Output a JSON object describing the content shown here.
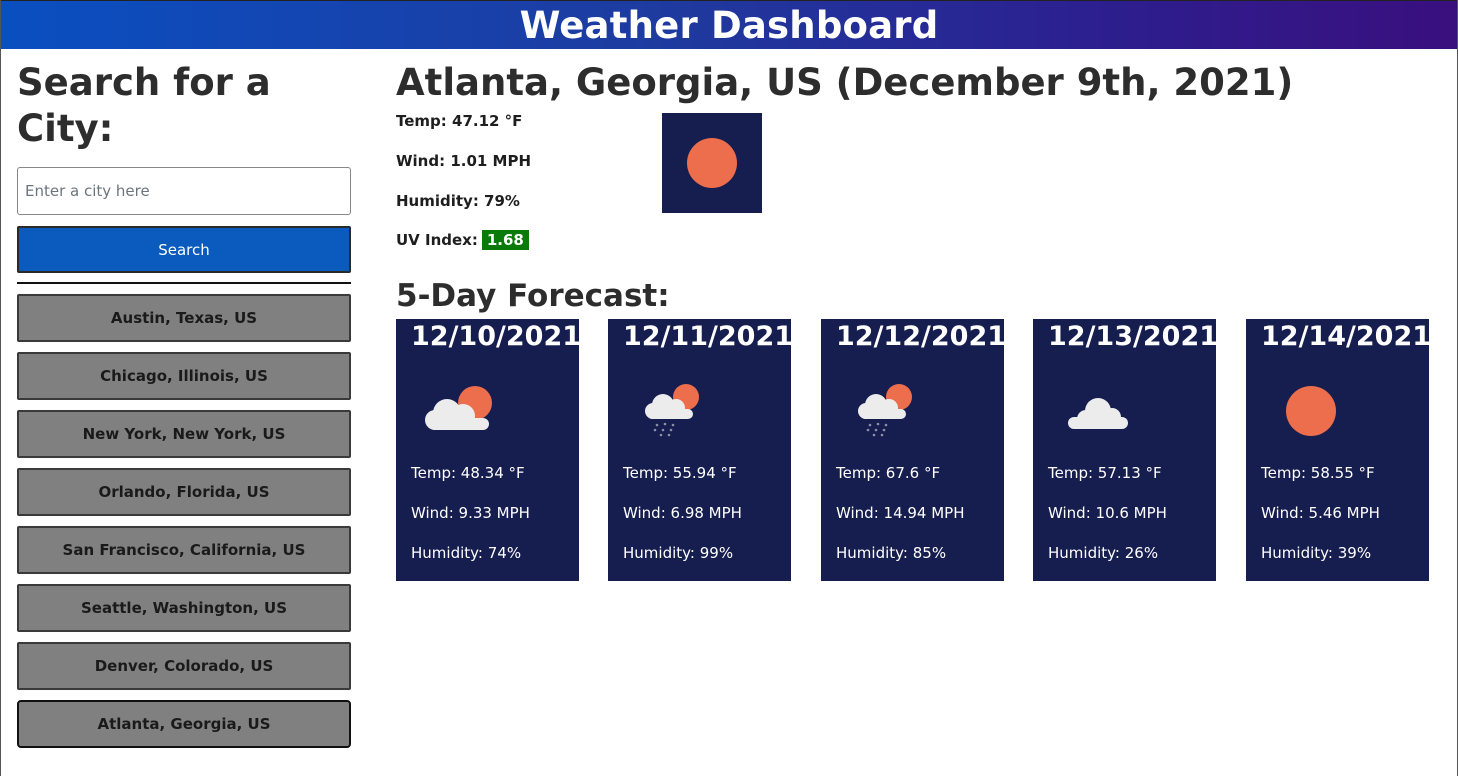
{
  "header": {
    "title": "Weather Dashboard"
  },
  "sidebar": {
    "heading": "Search for a City:",
    "search_placeholder": "Enter a city here",
    "search_value": "",
    "search_button": "Search",
    "history": [
      "Austin, Texas, US",
      "Chicago, Illinois, US",
      "New York, New York, US",
      "Orlando, Florida, US",
      "San Francisco, California, US",
      "Seattle, Washington, US",
      "Denver, Colorado, US",
      "Atlanta, Georgia, US"
    ]
  },
  "current": {
    "title": "Atlanta, Georgia, US (December 9th, 2021)",
    "temp": "Temp: 47.12 °F",
    "wind": "Wind: 1.01 MPH",
    "humidity": "Humidity: 79%",
    "uv_label": "UV Index:",
    "uv_value": "1.68",
    "icon": "clear-sun-icon"
  },
  "forecast": {
    "heading": "5-Day Forecast:",
    "days": [
      {
        "date": "12/10/2021",
        "icon": "sun-behind-cloud-icon",
        "temp": "Temp: 48.34 °F",
        "wind": "Wind: 9.33 MPH",
        "humidity": "Humidity: 74%"
      },
      {
        "date": "12/11/2021",
        "icon": "sun-cloud-rain-icon",
        "temp": "Temp: 55.94 °F",
        "wind": "Wind: 6.98 MPH",
        "humidity": "Humidity: 99%"
      },
      {
        "date": "12/12/2021",
        "icon": "sun-cloud-rain-icon",
        "temp": "Temp: 67.6 °F",
        "wind": "Wind: 14.94 MPH",
        "humidity": "Humidity: 85%"
      },
      {
        "date": "12/13/2021",
        "icon": "cloud-icon",
        "temp": "Temp: 57.13 °F",
        "wind": "Wind: 10.6 MPH",
        "humidity": "Humidity: 26%"
      },
      {
        "date": "12/14/2021",
        "icon": "clear-sun-icon",
        "temp": "Temp: 58.55 °F",
        "wind": "Wind: 5.46 MPH",
        "humidity": "Humidity: 39%"
      }
    ]
  },
  "colors": {
    "header_start": "#0a4fc1",
    "header_end": "#3a0f7e",
    "search_button": "#0a5bbd",
    "history_button": "#808080",
    "card_background": "#161d4f",
    "sun": "#ec6e4c",
    "uv_badge": "#0a7a0a"
  }
}
